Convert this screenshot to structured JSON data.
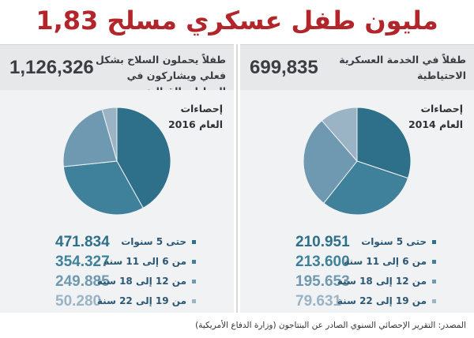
{
  "title": "1,83 مليون طفل عسكري مسلح",
  "banners": {
    "left": {
      "number": "1,126,326",
      "description": "طفلاً يحملون السلاح بشكل فعلي ويشاركون في العمليات القتالية"
    },
    "right": {
      "number": "699,835",
      "description": "طفلاً في الخدمة العسكرية الاحتياطية"
    }
  },
  "colors": [
    "#2e6f89",
    "#3f819b",
    "#6e99b0",
    "#9ab3c5"
  ],
  "chart_data": [
    {
      "type": "pie",
      "title": "إحصاءات العام 2016",
      "categories": [
        "حتى 5 سنوات",
        "من 6 إلى 11 سنة",
        "من 12 إلى 18 سنة",
        "من 19 إلى 22 سنة"
      ],
      "values": [
        471834,
        354327,
        249885,
        50280
      ],
      "value_labels": [
        "471.834",
        "354.327",
        "249.885",
        "50.280"
      ]
    },
    {
      "type": "pie",
      "title": "إحصاءات العام 2014",
      "categories": [
        "حتى 5 سنوات",
        "من 6 إلى 11 سنة",
        "من 12 إلى 18 سنة",
        "من 19 إلى 22 سنة"
      ],
      "values": [
        210951,
        213600,
        195653,
        79631
      ],
      "value_labels": [
        "210.951",
        "213.600",
        "195.653",
        "79.631"
      ]
    }
  ],
  "source": "المصدر: التقرير الإحصائي السنوي الصادر عن البنتاجون (وزارة الدفاع الأمريكية)"
}
